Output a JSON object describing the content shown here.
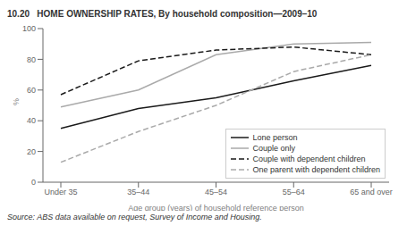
{
  "chart_data": {
    "type": "line",
    "title": "10.20   HOME OWNERSHIP RATES, By household composition—2009–10",
    "xlabel": "Age group (years) of household reference person",
    "ylabel": "%",
    "annotations": [
      "Source: ABS data available on request, Survey of Income and Housing."
    ],
    "categories": [
      "Under 35",
      "35–44",
      "45–54",
      "55–64",
      "65 and over"
    ],
    "series": [
      {
        "name": "Lone person",
        "color": "#1a1a1a",
        "line_style": "solid",
        "values": [
          35,
          48,
          55,
          66,
          76
        ]
      },
      {
        "name": "Couple only",
        "color": "#aaaaaa",
        "line_style": "solid",
        "values": [
          49,
          60,
          83,
          90,
          91
        ]
      },
      {
        "name": "Couple with dependent children",
        "color": "#1a1a1a",
        "line_style": "dashed",
        "values": [
          57,
          79,
          86,
          88,
          83
        ]
      },
      {
        "name": "One parent with dependent children",
        "color": "#aaaaaa",
        "line_style": "dashed",
        "values": [
          13,
          33,
          50,
          72,
          83
        ]
      }
    ],
    "ylim": [
      0,
      100
    ],
    "yticks": [
      0,
      20,
      40,
      60,
      80,
      100
    ],
    "grid": false,
    "legend": "lower right"
  }
}
